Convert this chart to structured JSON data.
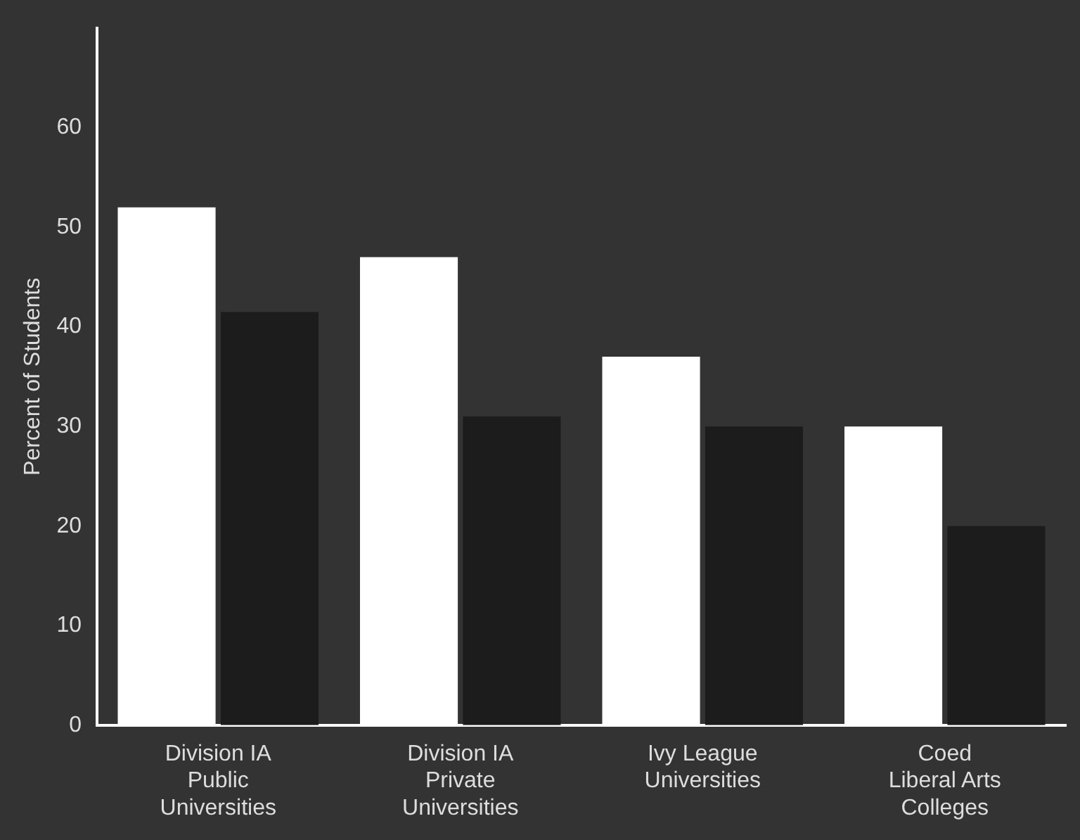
{
  "chart_data": {
    "type": "bar",
    "ylabel": "Percent of Students",
    "categories": [
      "Division IA\nPublic\nUniversities",
      "Division IA\nPrivate\nUniversities",
      "Ivy League\nUniversities",
      "Coed\nLiberal Arts\nColleges"
    ],
    "series": [
      {
        "color": "#ffffff",
        "values": [
          52,
          47,
          37,
          30
        ]
      },
      {
        "color": "#1c1c1c",
        "values": [
          41.5,
          31,
          30,
          20
        ]
      }
    ],
    "ylim": [
      0,
      70
    ],
    "yticks": [
      0,
      10,
      20,
      30,
      40,
      50,
      60
    ],
    "grid": false,
    "legend": false
  }
}
